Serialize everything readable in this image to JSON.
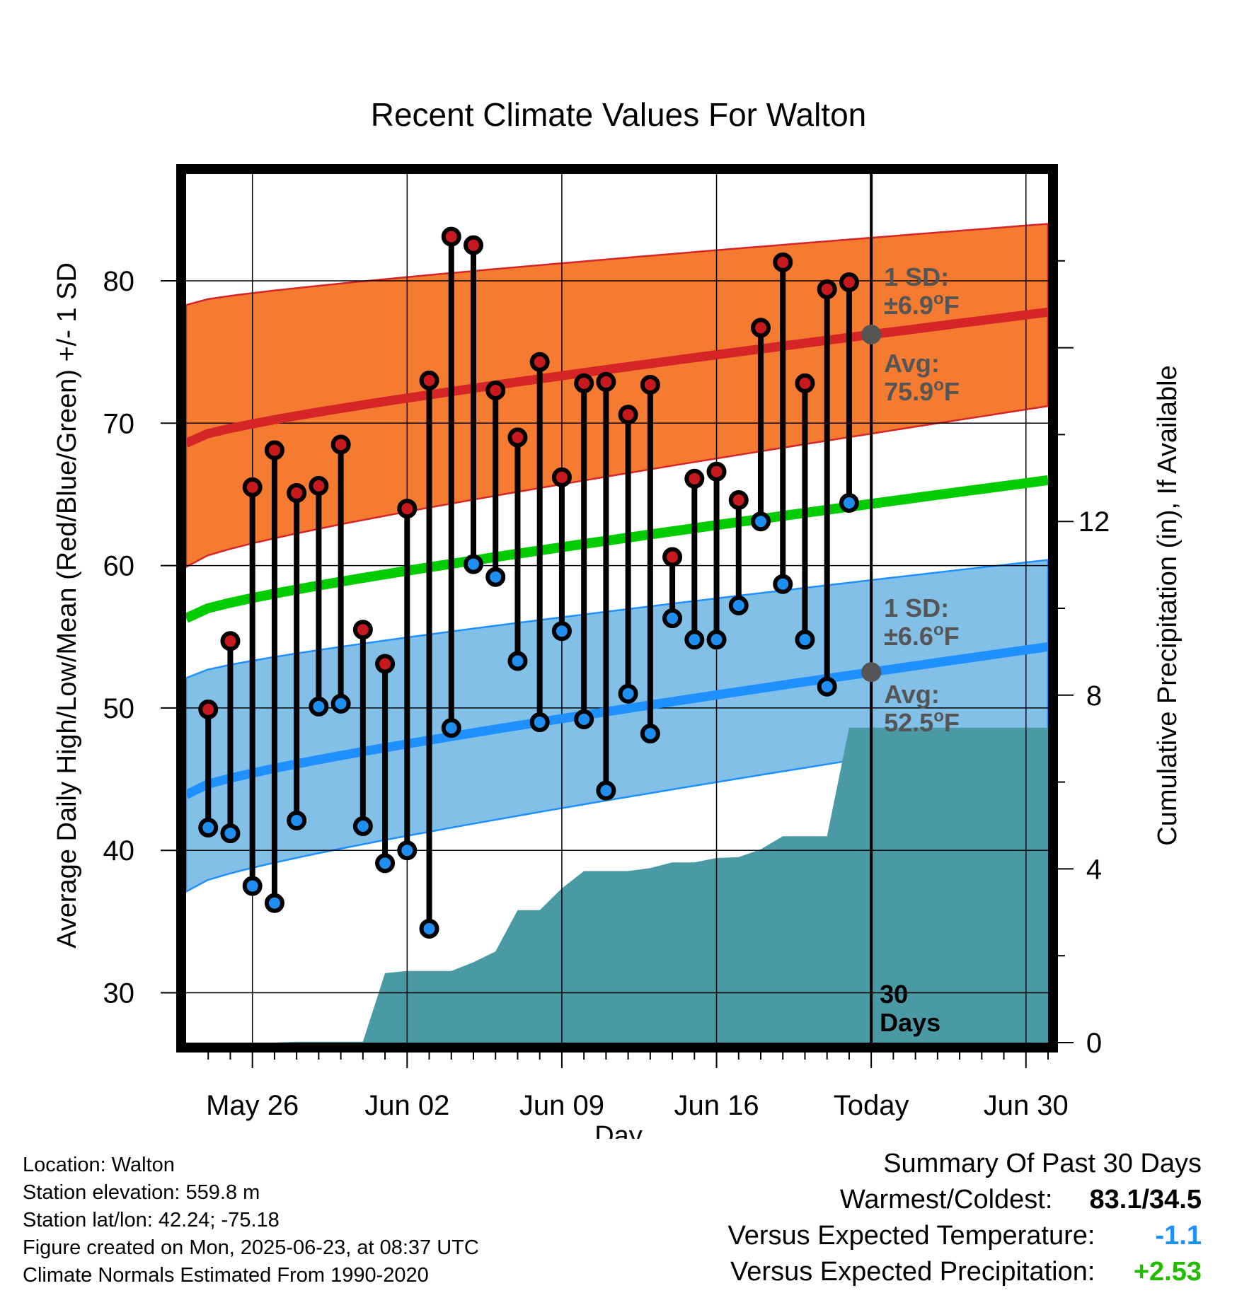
{
  "chart_data": {
    "type": "line",
    "title": "Recent Climate Values For Walton",
    "xlabel": "Day",
    "ylabel": "Average Daily High/Low/Mean (Red/Blue/Green) +/- 1 SD",
    "y2label": "Cumulative Precipitation (in), If Available",
    "ylim": [
      26.5,
      87.5
    ],
    "y2lim": [
      0,
      20
    ],
    "yticks": [
      30,
      40,
      50,
      60,
      70,
      80
    ],
    "y2ticks": [
      0,
      4,
      8,
      12
    ],
    "xlim": [
      "May 23",
      "Jul 01"
    ],
    "xticks": [
      "May 26",
      "Jun 02",
      "Jun 09",
      "Jun 16",
      "Today",
      "Jun 30"
    ],
    "grid": true,
    "today": "Jun 23",
    "normals": {
      "high_avg_start": 68.6,
      "high_avg_end": 77.8,
      "high_sd_upper_start": 78.3,
      "high_sd_upper_end": 84.0,
      "high_sd_lower_start": 59.9,
      "high_sd_lower_end": 71.2,
      "mean_start": 56.3,
      "mean_end": 66.0,
      "low_avg_start": 43.9,
      "low_avg_end": 54.3,
      "low_sd_upper_start": 52.1,
      "low_sd_upper_end": 60.4,
      "low_sd_lower_start": 37.1,
      "low_sd_lower_end": 48.5
    },
    "series": [
      {
        "name": "High",
        "dates": [
          "May 24",
          "May 25",
          "May 26",
          "May 27",
          "May 28",
          "May 29",
          "May 30",
          "May 31",
          "Jun 01",
          "Jun 02",
          "Jun 03",
          "Jun 04",
          "Jun 05",
          "Jun 06",
          "Jun 07",
          "Jun 08",
          "Jun 09",
          "Jun 10",
          "Jun 11",
          "Jun 12",
          "Jun 13",
          "Jun 14",
          "Jun 15",
          "Jun 16",
          "Jun 17",
          "Jun 18",
          "Jun 19",
          "Jun 20",
          "Jun 21",
          "Jun 22"
        ],
        "values": [
          49.9,
          54.7,
          65.5,
          68.1,
          65.1,
          65.6,
          68.5,
          55.5,
          53.1,
          64.0,
          73.0,
          83.1,
          82.5,
          72.3,
          69.0,
          74.3,
          66.2,
          72.8,
          72.9,
          70.6,
          72.7,
          60.6,
          66.1,
          66.6,
          64.6,
          76.7,
          81.3,
          72.8,
          79.4,
          79.9
        ]
      },
      {
        "name": "Low",
        "dates": [
          "May 24",
          "May 25",
          "May 26",
          "May 27",
          "May 28",
          "May 29",
          "May 30",
          "May 31",
          "Jun 01",
          "Jun 02",
          "Jun 03",
          "Jun 04",
          "Jun 05",
          "Jun 06",
          "Jun 07",
          "Jun 08",
          "Jun 09",
          "Jun 10",
          "Jun 11",
          "Jun 12",
          "Jun 13",
          "Jun 14",
          "Jun 15",
          "Jun 16",
          "Jun 17",
          "Jun 18",
          "Jun 19",
          "Jun 20",
          "Jun 21",
          "Jun 22"
        ],
        "values": [
          41.6,
          41.2,
          37.5,
          36.3,
          42.1,
          50.1,
          50.3,
          41.7,
          39.1,
          40.0,
          34.5,
          48.6,
          60.1,
          59.2,
          53.3,
          49.0,
          55.4,
          49.2,
          44.2,
          51.0,
          48.2,
          56.3,
          54.8,
          54.8,
          57.2,
          63.1,
          58.7,
          54.8,
          51.5,
          64.4
        ]
      },
      {
        "name": "Cumulative Precipitation",
        "dates": [
          "May 23",
          "May 27",
          "May 28",
          "May 29",
          "May 30",
          "May 31",
          "Jun 01",
          "Jun 02",
          "Jun 03",
          "Jun 04",
          "Jun 05",
          "Jun 06",
          "Jun 07",
          "Jun 08",
          "Jun 09",
          "Jun 10",
          "Jun 11",
          "Jun 12",
          "Jun 13",
          "Jun 14",
          "Jun 15",
          "Jun 16",
          "Jun 17",
          "Jun 18",
          "Jun 19",
          "Jun 20",
          "Jun 21",
          "Jun 22",
          "Jul 01"
        ],
        "values": [
          0.0,
          0.0,
          0.02,
          0.02,
          0.02,
          0.02,
          1.6,
          1.65,
          1.65,
          1.65,
          1.85,
          2.1,
          3.05,
          3.05,
          3.55,
          3.95,
          3.95,
          3.95,
          4.02,
          4.15,
          4.15,
          4.25,
          4.27,
          4.45,
          4.75,
          4.75,
          4.75,
          7.25,
          7.25
        ]
      }
    ],
    "annotations": {
      "high_sd_line1": "1 SD:",
      "high_sd_line2": "±6.9",
      "high_avg_line1": "Avg:",
      "high_avg_line2": "75.9",
      "low_sd_line1": "1 SD:",
      "low_sd_line2": "±6.6",
      "low_avg_line1": "Avg:",
      "low_avg_line2": "52.5",
      "deg": "o",
      "unit": "F",
      "days_line1": "30",
      "days_line2": "Days"
    },
    "colors": {
      "high_band": "#f47b30",
      "high_avg": "#d62527",
      "mean": "#00cc00",
      "low_band": "#82c0e8",
      "low_avg": "#1e90ff",
      "precip": "#4a9aa5",
      "high_marker": "#c8191f",
      "low_marker": "#1e8ef0"
    }
  },
  "footer": {
    "location": "Location: Walton",
    "elevation": "Station elevation: 559.8 m",
    "latlon": "Station lat/lon: 42.24; -75.18",
    "created": "Figure created on Mon, 2025-06-23, at 08:37 UTC",
    "normals": "Climate Normals Estimated From 1990-2020"
  },
  "summary": {
    "heading": "Summary Of Past 30 Days",
    "warm_cold_label": "Warmest/Coldest:",
    "warm_cold_value": "83.1/34.5",
    "temp_label": "Versus Expected Temperature:",
    "temp_value": "-1.1",
    "temp_color": "#1e90ff",
    "precip_label": "Versus Expected Precipitation:",
    "precip_value": "+2.53",
    "precip_color": "#22bb00"
  }
}
